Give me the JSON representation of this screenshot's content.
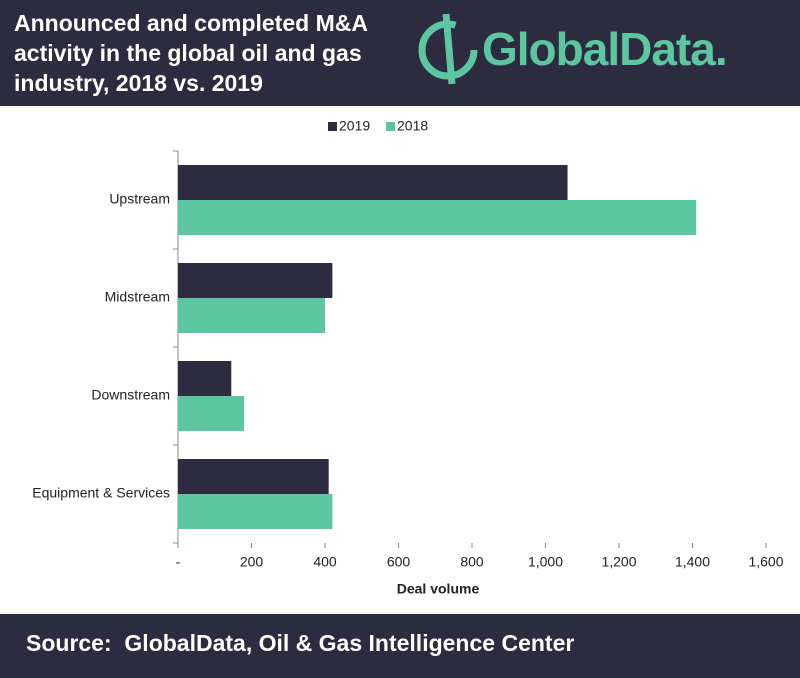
{
  "title": "Announced and completed M&A activity in the global oil and gas industry, 2018 vs. 2019",
  "logo": "GlobalData.",
  "source": "Source:  GlobalData, Oil & Gas Intelligence Center",
  "chart_data": {
    "type": "hbar",
    "categories": [
      "Upstream",
      "Midstream",
      "Downstream",
      "Equipment & Services"
    ],
    "series": [
      {
        "name": "2019",
        "color": "#2d2b3f",
        "values": [
          1060,
          420,
          145,
          410
        ]
      },
      {
        "name": "2018",
        "color": "#5cc6a0",
        "values": [
          1410,
          400,
          180,
          420
        ]
      }
    ],
    "xlabel": "Deal volume",
    "xlim": [
      0,
      1600
    ],
    "xticks": [
      {
        "value": 0,
        "label": "-"
      },
      200,
      400,
      600,
      800,
      {
        "value": 1000,
        "label": "1,000"
      },
      {
        "value": 1200,
        "label": "1,200"
      },
      {
        "value": 1400,
        "label": "1,400"
      },
      {
        "value": 1600,
        "label": "1,600"
      }
    ],
    "legend": "top"
  }
}
